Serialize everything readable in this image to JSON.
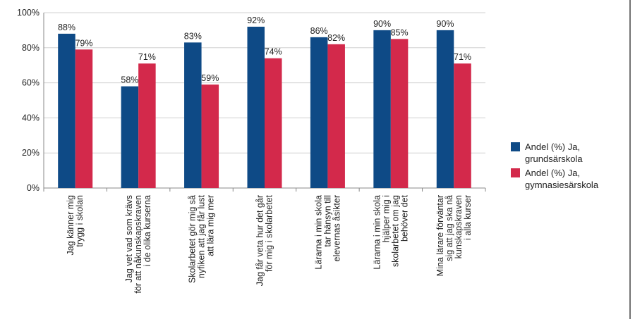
{
  "chart_data": {
    "type": "bar",
    "categories": [
      [
        "Jag känner mig",
        "trygg i skolan"
      ],
      [
        "Jag vet vad som krävs",
        "för att nåkunskapskraven",
        "i de olika kurserna"
      ],
      [
        "Skolarbetet gör mig så",
        "nyfiken att jag får lust",
        "att lära mig mer"
      ],
      [
        "Jag får veta hur det går",
        "för mig i skolarbetet"
      ],
      [
        "Lärarna i min skola",
        "tar hänsyn till",
        "elevernas åsikter"
      ],
      [
        "Lärarna i min skola",
        "hjälper mig i",
        "skolarbetet om jag",
        "behöver det"
      ],
      [
        "Mina lärare förväntar",
        "sig att jag ska nå",
        "kunskapskraven",
        "i alla kurser"
      ]
    ],
    "series": [
      {
        "name": "Andel (%) Ja, grundsärskola",
        "color": "#0e4a86",
        "values": [
          88,
          58,
          83,
          92,
          86,
          90,
          90
        ],
        "value_labels": [
          "88%",
          "58%",
          "83%",
          "92%",
          "86%",
          "90%",
          "90%"
        ]
      },
      {
        "name": "Andel (%) Ja, gymnasiesärskola",
        "color": "#d3294b",
        "values": [
          79,
          71,
          59,
          74,
          82,
          85,
          71
        ],
        "value_labels": [
          "79%",
          "71%",
          "59%",
          "74%",
          "82%",
          "85%",
          "71%"
        ]
      }
    ],
    "ylim": [
      0,
      100
    ],
    "yticks": [
      {
        "value": 0,
        "label": "0%"
      },
      {
        "value": 20,
        "label": "20%"
      },
      {
        "value": 40,
        "label": "40%"
      },
      {
        "value": 60,
        "label": "60%"
      },
      {
        "value": 80,
        "label": "80%"
      },
      {
        "value": 100,
        "label": "100%"
      }
    ],
    "grid": true,
    "legend": "right"
  }
}
